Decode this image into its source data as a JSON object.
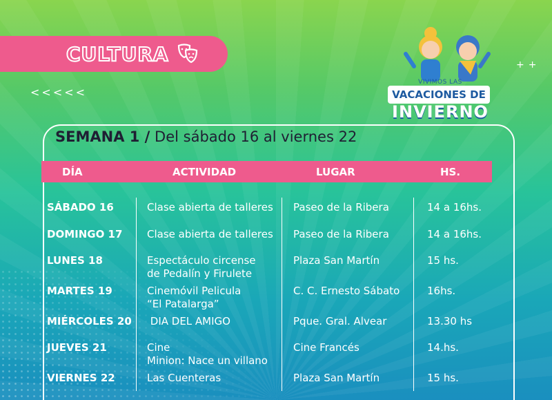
{
  "section": "CULTURA",
  "decor": {
    "chevrons": "<<<<<",
    "plus": "++"
  },
  "badge": {
    "top": "VIVIMOS LAS",
    "middle": "VACACIONES DE",
    "bottom": "INVIERNO"
  },
  "week": {
    "label": "SEMANA 1 /",
    "range": "Del sábado 16 al viernes 22"
  },
  "columns": [
    "DÍA",
    "ACTIVIDAD",
    "LUGAR",
    "HS."
  ],
  "rows": [
    {
      "day": "SÁBADO 16",
      "activity": [
        "Clase abierta de talleres"
      ],
      "place": "Paseo de la Ribera",
      "hours": "14 a 16hs."
    },
    {
      "day": "DOMINGO 17",
      "activity": [
        "Clase abierta de talleres"
      ],
      "place": "Paseo de la Ribera",
      "hours": "14 a 16hs."
    },
    {
      "day": "LUNES 18",
      "activity": [
        "Espectáculo circense",
        "de Pedalín y Firulete"
      ],
      "place": "Plaza San Martín",
      "hours": "15 hs."
    },
    {
      "day": "MARTES 19",
      "activity": [
        "Cinemóvil Pelicula",
        "“El Patalarga”"
      ],
      "place": "C. C. Ernesto Sábato",
      "hours": "16hs."
    },
    {
      "day": "MIÉRCOLES 20",
      "activity": [
        " DIA DEL AMIGO"
      ],
      "place": "Pque. Gral. Alvear",
      "hours": "13.30 hs"
    },
    {
      "day": "JUEVES 21",
      "activity": [
        "Cine",
        "Minion: Nace un villano"
      ],
      "place": "Cine Francés",
      "hours": "14.hs."
    },
    {
      "day": "VIERNES 22",
      "activity": [
        "Las Cuenteras"
      ],
      "place": "Plaza San Martín",
      "hours": "15 hs."
    }
  ],
  "colors": {
    "accent": "#ee5b8d",
    "text_dark": "#1f1f33",
    "brand_blue": "#1d5aa0"
  }
}
